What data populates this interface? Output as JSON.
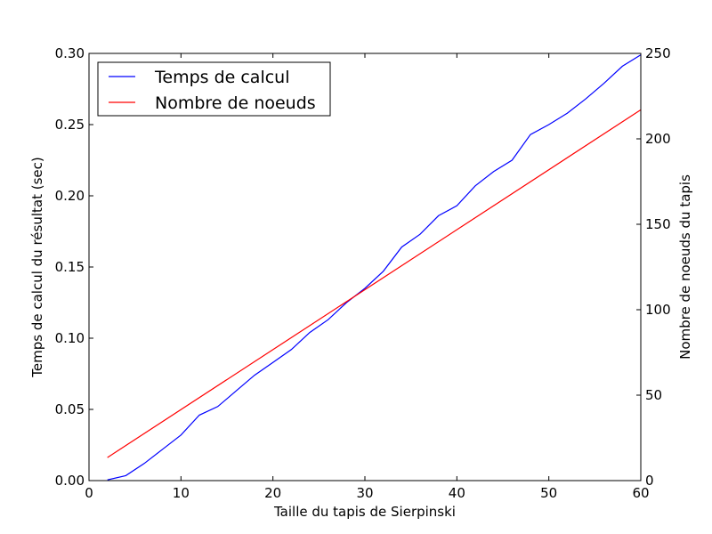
{
  "chart_data": {
    "type": "line",
    "xlabel": "Taille du tapis de Sierpinski",
    "ylabel": "Temps de calcul du résultat (sec)",
    "y2label": "Nombre de noeuds du tapis",
    "xlim": [
      0,
      60
    ],
    "ylim": [
      0,
      0.3
    ],
    "y2lim": [
      0,
      250
    ],
    "xticks": [
      0,
      10,
      20,
      30,
      40,
      50,
      60
    ],
    "yticks": [
      0.0,
      0.05,
      0.1,
      0.15,
      0.2,
      0.25,
      0.3
    ],
    "ytick_labels": [
      "0.00",
      "0.05",
      "0.10",
      "0.15",
      "0.20",
      "0.25",
      "0.30"
    ],
    "y2ticks": [
      0,
      50,
      100,
      150,
      200,
      250
    ],
    "grid": false,
    "legend_position": "top-left",
    "series": [
      {
        "name": "Temps de calcul",
        "color": "#0000ff",
        "axis": "left",
        "x": [
          2,
          4,
          6,
          8,
          10,
          12,
          14,
          16,
          18,
          20,
          22,
          24,
          26,
          28,
          30,
          32,
          34,
          36,
          38,
          40,
          42,
          44,
          46,
          48,
          50,
          52,
          54,
          56,
          58,
          60
        ],
        "values": [
          0.0005,
          0.0035,
          0.012,
          0.022,
          0.032,
          0.046,
          0.052,
          0.063,
          0.074,
          0.083,
          0.092,
          0.104,
          0.113,
          0.125,
          0.135,
          0.147,
          0.164,
          0.173,
          0.186,
          0.193,
          0.207,
          0.217,
          0.225,
          0.243,
          0.25,
          0.258,
          0.268,
          0.279,
          0.291,
          0.299
        ]
      },
      {
        "name": "Nombre de noeuds",
        "color": "#ff0000",
        "axis": "right",
        "x": [
          2,
          60
        ],
        "values": [
          13.5,
          217
        ]
      }
    ]
  }
}
